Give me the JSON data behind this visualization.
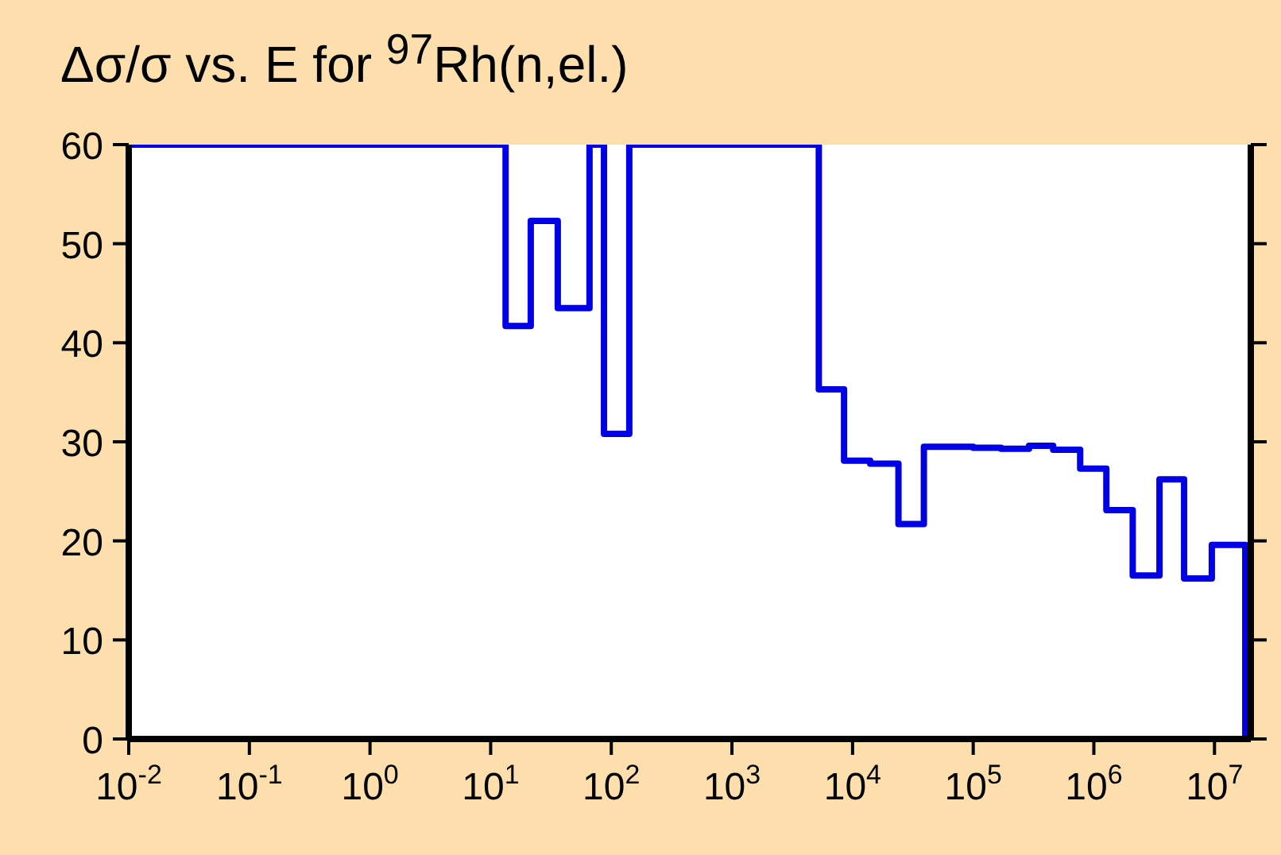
{
  "chart_data": {
    "type": "step",
    "title": "Δσ/σ vs. E for $^{97}$Rh(n,el.)",
    "log": "x",
    "x": [
      0.01,
      0.01,
      13.3,
      21.5,
      36,
      66,
      87,
      141,
      5250,
      8500,
      14000,
      24000,
      39000,
      65000,
      100000,
      170000,
      290000,
      460000,
      770000,
      1270000,
      2100000,
      3500000,
      5600000,
      9500000,
      18000000,
      18000000
    ],
    "values": [
      0,
      60,
      41.7,
      52.3,
      43.5,
      60,
      30.8,
      60,
      35.3,
      28.1,
      27.8,
      21.7,
      29.5,
      29.5,
      29.4,
      29.3,
      29.6,
      29.2,
      27.3,
      23.1,
      16.5,
      26.2,
      16.2,
      19.6,
      19.6,
      0
    ],
    "color": "#0000e6",
    "xlim": [
      0.01,
      20000000
    ],
    "xticks": [
      {
        "value": 0.01,
        "label": "10$^{-2}$"
      },
      {
        "value": 0.1,
        "label": "10$^{-1}$"
      },
      {
        "value": 1,
        "label": "10$^{0}$"
      },
      {
        "value": 10,
        "label": "10$^{1}$"
      },
      {
        "value": 100,
        "label": "10$^{2}$"
      },
      {
        "value": 1000,
        "label": "10$^{3}$"
      },
      {
        "value": 10000,
        "label": "10$^{4}$"
      },
      {
        "value": 100000,
        "label": "10$^{5}$"
      },
      {
        "value": 1000000,
        "label": "10$^{6}$"
      },
      {
        "value": 10000000,
        "label": "10$^{7}$"
      }
    ],
    "ylim": [
      0,
      60
    ],
    "yticks": [
      0,
      10,
      20,
      30,
      40,
      50,
      60
    ],
    "grid": false
  }
}
